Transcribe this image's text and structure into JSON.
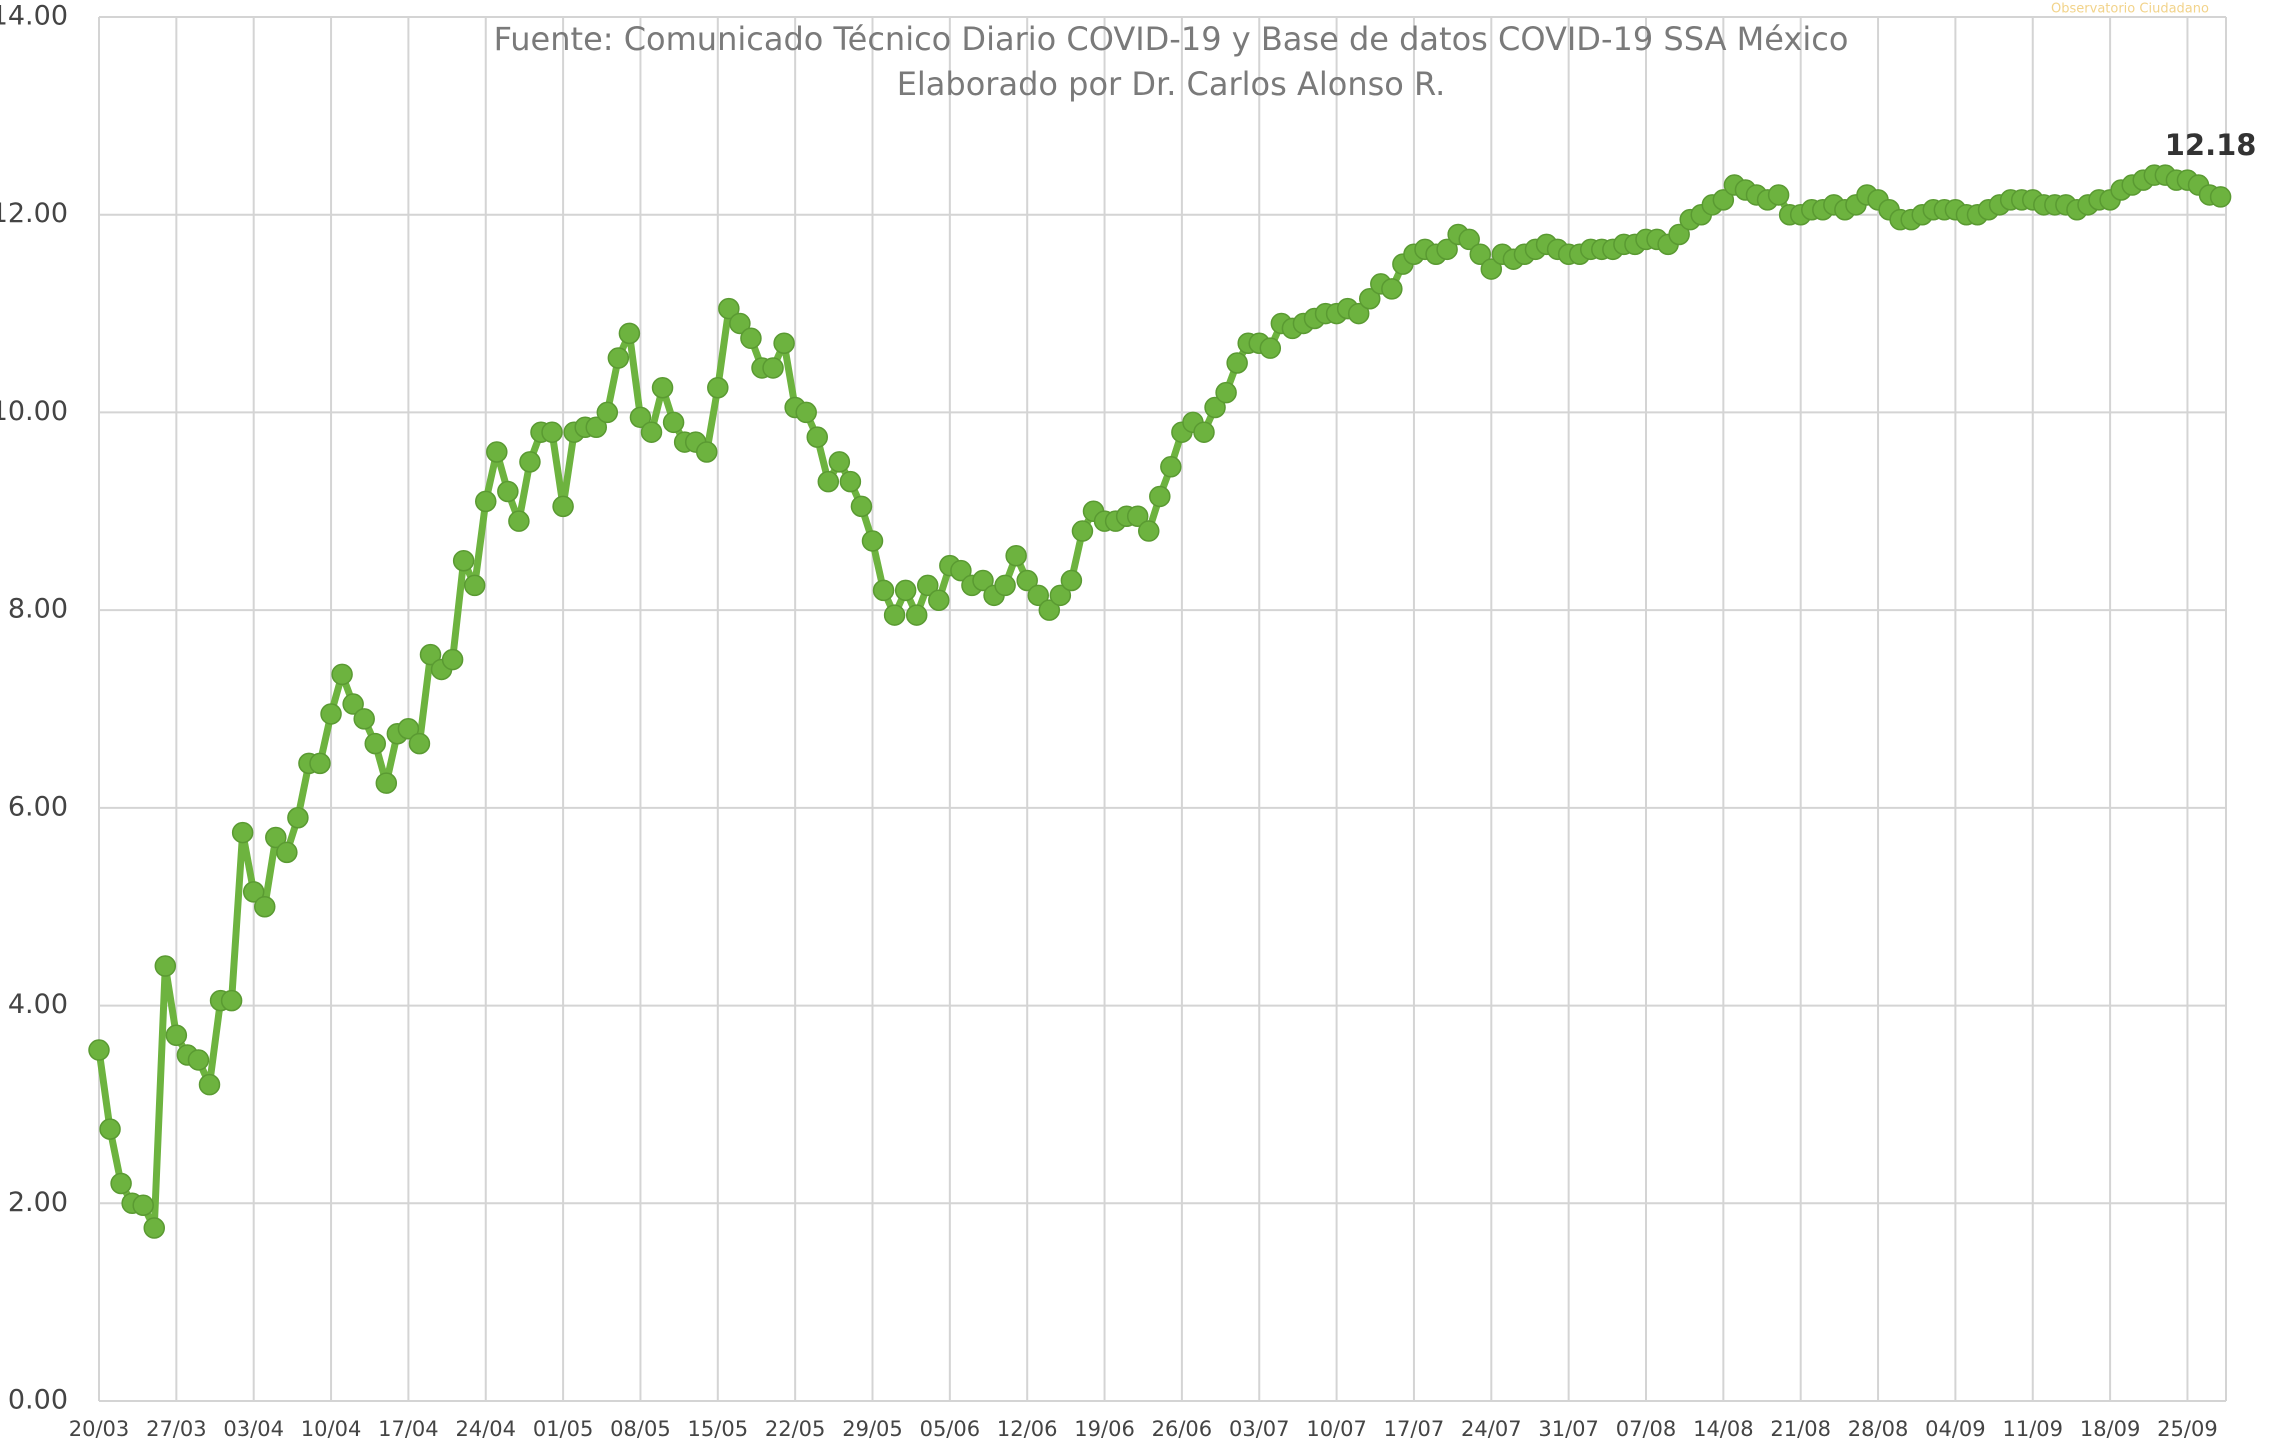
{
  "chart_data": {
    "type": "line",
    "subtitle": [
      "Fuente: Comunicado Técnico Diario COVID-19 y Base de datos COVID-19 SSA México",
      "Elaborado por Dr. Carlos Alonso R."
    ],
    "annotation": "Observatorio Ciudadano",
    "categories": [
      "20/03",
      null,
      null,
      null,
      null,
      null,
      null,
      "27/03",
      null,
      null,
      null,
      null,
      null,
      null,
      "03/04",
      null,
      null,
      null,
      null,
      null,
      null,
      "10/04",
      null,
      null,
      null,
      null,
      null,
      null,
      "17/04",
      null,
      null,
      null,
      null,
      null,
      null,
      "24/04",
      null,
      null,
      null,
      null,
      null,
      null,
      "01/05",
      null,
      null,
      null,
      null,
      null,
      null,
      "08/05",
      null,
      null,
      null,
      null,
      null,
      null,
      "15/05",
      null,
      null,
      null,
      null,
      null,
      null,
      "22/05",
      null,
      null,
      null,
      null,
      null,
      null,
      "29/05",
      null,
      null,
      null,
      null,
      null,
      null,
      "05/06",
      null,
      null,
      null,
      null,
      null,
      null,
      "12/06",
      null,
      null,
      null,
      null,
      null,
      null,
      "19/06",
      null,
      null,
      null,
      null,
      null,
      null,
      "26/06",
      null,
      null,
      null,
      null,
      null,
      null,
      "03/07",
      null,
      null,
      null,
      null,
      null,
      null,
      "10/07",
      null,
      null,
      null,
      null,
      null,
      null,
      "17/07",
      null,
      null,
      null,
      null,
      null,
      null,
      "24/07",
      null,
      null,
      null,
      null,
      null,
      null,
      "31/07",
      null,
      null,
      null,
      null,
      null,
      null,
      "07/08",
      null,
      null,
      null,
      null,
      null,
      null,
      "14/08",
      null,
      null,
      null,
      null,
      null,
      null,
      "21/08",
      null,
      null,
      null,
      null,
      null,
      null,
      "28/08",
      null,
      null,
      null,
      null,
      null,
      null,
      "04/09",
      null,
      null,
      null,
      null,
      null,
      null,
      "11/09",
      null,
      null,
      null,
      null,
      null,
      null,
      "18/09",
      null,
      null,
      null,
      null,
      null,
      null,
      "25/09",
      null,
      null,
      null
    ],
    "series": [
      {
        "color": "#6db33f",
        "values": [
          3.55,
          2.75,
          2.2,
          2.0,
          1.98,
          1.75,
          4.4,
          3.7,
          3.5,
          3.45,
          3.2,
          4.05,
          4.05,
          5.75,
          5.15,
          5.0,
          5.7,
          5.55,
          5.9,
          6.45,
          6.45,
          6.95,
          7.35,
          7.05,
          6.9,
          6.65,
          6.25,
          6.75,
          6.8,
          6.65,
          7.55,
          7.4,
          7.5,
          8.5,
          8.25,
          9.1,
          9.6,
          9.2,
          8.9,
          9.5,
          9.8,
          9.8,
          9.05,
          9.8,
          9.85,
          9.85,
          10.0,
          10.55,
          10.8,
          9.95,
          9.8,
          10.25,
          9.9,
          9.7,
          9.7,
          9.6,
          10.25,
          11.05,
          10.9,
          10.75,
          10.45,
          10.45,
          10.7,
          10.05,
          10.0,
          9.75,
          9.3,
          9.5,
          9.3,
          9.05,
          8.7,
          8.2,
          7.95,
          8.2,
          7.95,
          8.25,
          8.1,
          8.45,
          8.4,
          8.25,
          8.3,
          8.15,
          8.25,
          8.55,
          8.3,
          8.15,
          8.0,
          8.15,
          8.3,
          8.8,
          9.0,
          8.9,
          8.9,
          8.95,
          8.95,
          8.8,
          9.15,
          9.45,
          9.8,
          9.9,
          9.8,
          10.05,
          10.2,
          10.5,
          10.7,
          10.7,
          10.65,
          10.9,
          10.85,
          10.9,
          10.95,
          11.0,
          11.0,
          11.05,
          11.0,
          11.15,
          11.3,
          11.25,
          11.5,
          11.6,
          11.65,
          11.6,
          11.65,
          11.8,
          11.75,
          11.6,
          11.45,
          11.6,
          11.55,
          11.6,
          11.65,
          11.7,
          11.65,
          11.6,
          11.6,
          11.65,
          11.65,
          11.65,
          11.7,
          11.7,
          11.75,
          11.75,
          11.7,
          11.8,
          11.95,
          12.0,
          12.1,
          12.15,
          12.3,
          12.25,
          12.2,
          12.15,
          12.2,
          12.0,
          12.0,
          12.05,
          12.05,
          12.1,
          12.05,
          12.1,
          12.2,
          12.15,
          12.05,
          11.95,
          11.95,
          12.0,
          12.05,
          12.05,
          12.05,
          12.0,
          12.0,
          12.05,
          12.1,
          12.15,
          12.15,
          12.15,
          12.1,
          12.1,
          12.1,
          12.05,
          12.1,
          12.15,
          12.15,
          12.25,
          12.3,
          12.35,
          12.4,
          12.4,
          12.35,
          12.35,
          12.3,
          12.2,
          12.18
        ]
      }
    ],
    "ylim": [
      0,
      14
    ],
    "yticks": [
      {
        "value": 0,
        "label": "0.00"
      },
      {
        "value": 2,
        "label": "2.00"
      },
      {
        "value": 4,
        "label": "4.00"
      },
      {
        "value": 6,
        "label": "6.00"
      },
      {
        "value": 8,
        "label": "8.00"
      },
      {
        "value": 10,
        "label": "10.00"
      },
      {
        "value": 12,
        "label": "12.00"
      },
      {
        "value": 14,
        "label": "14.00"
      }
    ],
    "grid": true,
    "last_value_label": true
  }
}
